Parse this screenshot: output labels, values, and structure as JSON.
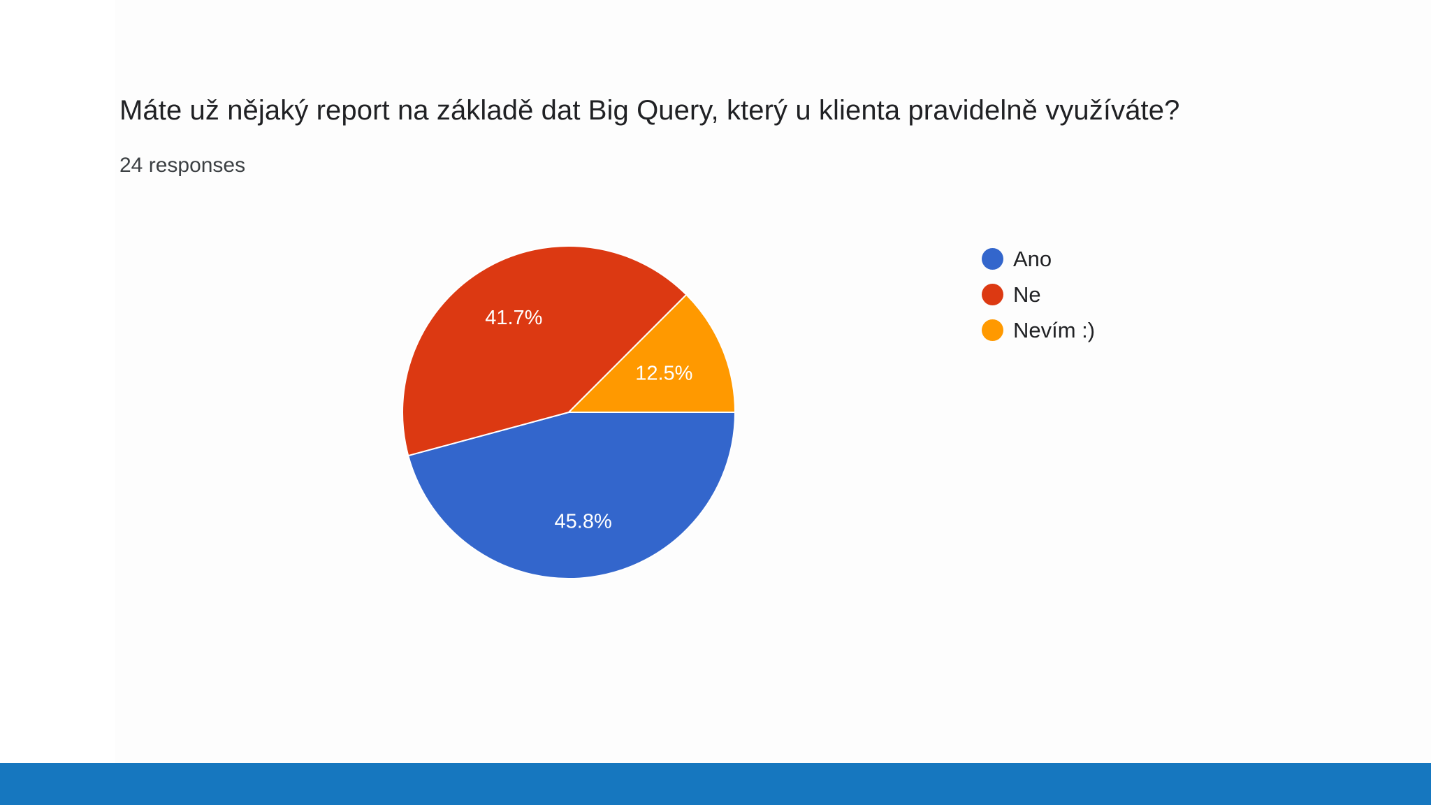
{
  "colors": {
    "ano": "#3366cc",
    "ne": "#dc3912",
    "nevim": "#ff9900",
    "footer": "#1677bf"
  },
  "chart_data": {
    "type": "pie",
    "title": "Máte už nějaký report na základě dat Big Query, který u klienta pravidelně využíváte?",
    "subtitle": "24 responses",
    "legend_position": "right",
    "slices": [
      {
        "label": "Ano",
        "value": 45.8,
        "display": "45.8%",
        "color": "#3366cc"
      },
      {
        "label": "Ne",
        "value": 41.7,
        "display": "41.7%",
        "color": "#dc3912"
      },
      {
        "label": "Nevím :)",
        "value": 12.5,
        "display": "12.5%",
        "color": "#ff9900"
      }
    ]
  }
}
